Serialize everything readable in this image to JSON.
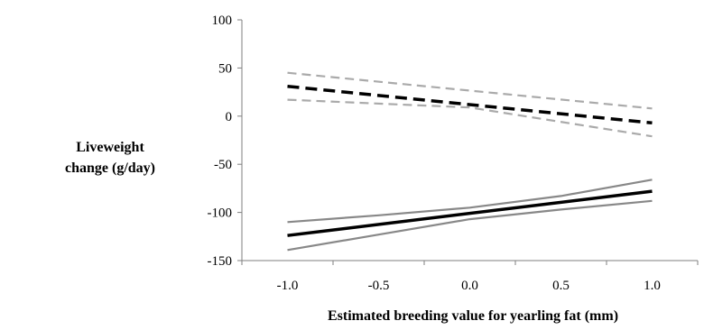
{
  "chart_data": {
    "type": "line",
    "title": "",
    "xlabel": "Estimated breeding value for  yearling fat (mm)",
    "ylabel_lines": [
      "Liveweight",
      "change (g/day)"
    ],
    "xlim": [
      -1.25,
      1.25
    ],
    "ylim": [
      -150,
      100
    ],
    "x_ticks": [
      -1.0,
      -0.5,
      0.0,
      0.5,
      1.0
    ],
    "x_tick_labels": [
      "-1.0",
      "-0.5",
      "0.0",
      "0.5",
      "1.0"
    ],
    "y_ticks": [
      100,
      50,
      0,
      -50,
      -100,
      -150
    ],
    "y_tick_labels": [
      "100",
      "50",
      "0",
      "-50",
      "-100",
      "-150"
    ],
    "grid": false,
    "legend": "none",
    "series": [
      {
        "x": [
          -1.0,
          1.0
        ],
        "values": [
          45,
          8
        ],
        "color": "#aaaaaa",
        "style": "dashed",
        "width": "thin"
      },
      {
        "x": [
          -1.0,
          1.0
        ],
        "values": [
          31,
          -7
        ],
        "color": "#000000",
        "style": "dashed",
        "width": "thick"
      },
      {
        "x": [
          -1.0,
          0.0,
          1.0
        ],
        "values": [
          17,
          9,
          -21
        ],
        "color": "#aaaaaa",
        "style": "dashed",
        "width": "thin"
      },
      {
        "x": [
          -1.0,
          -0.5,
          0.0,
          0.5,
          1.0
        ],
        "values": [
          -110,
          -103,
          -95,
          -83,
          -66
        ],
        "color": "#888888",
        "style": "solid",
        "width": "thin"
      },
      {
        "x": [
          -1.0,
          1.0
        ],
        "values": [
          -124,
          -78
        ],
        "color": "#000000",
        "style": "solid",
        "width": "thick"
      },
      {
        "x": [
          -1.0,
          -0.5,
          0.0,
          0.5,
          1.0
        ],
        "values": [
          -139,
          -123,
          -107,
          -97,
          -88
        ],
        "color": "#888888",
        "style": "solid",
        "width": "thin"
      }
    ]
  }
}
